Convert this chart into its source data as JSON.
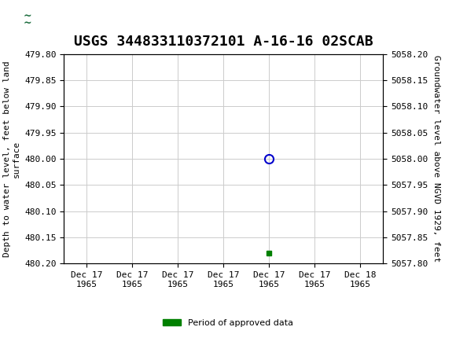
{
  "title": "USGS 344833110372101 A-16-16 02SCAB",
  "ylabel_left": "Depth to water level, feet below land\nsurface",
  "ylabel_right": "Groundwater level above NGVD 1929, feet",
  "ylim_left": [
    480.2,
    479.8
  ],
  "ylim_right": [
    5057.8,
    5058.2
  ],
  "yticks_left": [
    479.8,
    479.85,
    479.9,
    479.95,
    480.0,
    480.05,
    480.1,
    480.15,
    480.2
  ],
  "yticks_right": [
    5058.2,
    5058.15,
    5058.1,
    5058.05,
    5058.0,
    5057.95,
    5057.9,
    5057.85,
    5057.8
  ],
  "data_point_x": 4,
  "data_point_y": 480.0,
  "green_point_x": 4,
  "green_point_y": 480.18,
  "x_tick_labels": [
    "Dec 17\n1965",
    "Dec 17\n1965",
    "Dec 17\n1965",
    "Dec 17\n1965",
    "Dec 17\n1965",
    "Dec 17\n1965",
    "Dec 18\n1965"
  ],
  "x_positions": [
    0,
    1,
    2,
    3,
    4,
    5,
    6
  ],
  "xlim": [
    -0.5,
    6.5
  ],
  "circle_color": "#0000cc",
  "green_color": "#008000",
  "grid_color": "#cccccc",
  "bg_color": "#ffffff",
  "header_color": "#1a6b3c",
  "title_fontsize": 13,
  "axis_fontsize": 8,
  "tick_fontsize": 8,
  "legend_label": "Period of approved data"
}
